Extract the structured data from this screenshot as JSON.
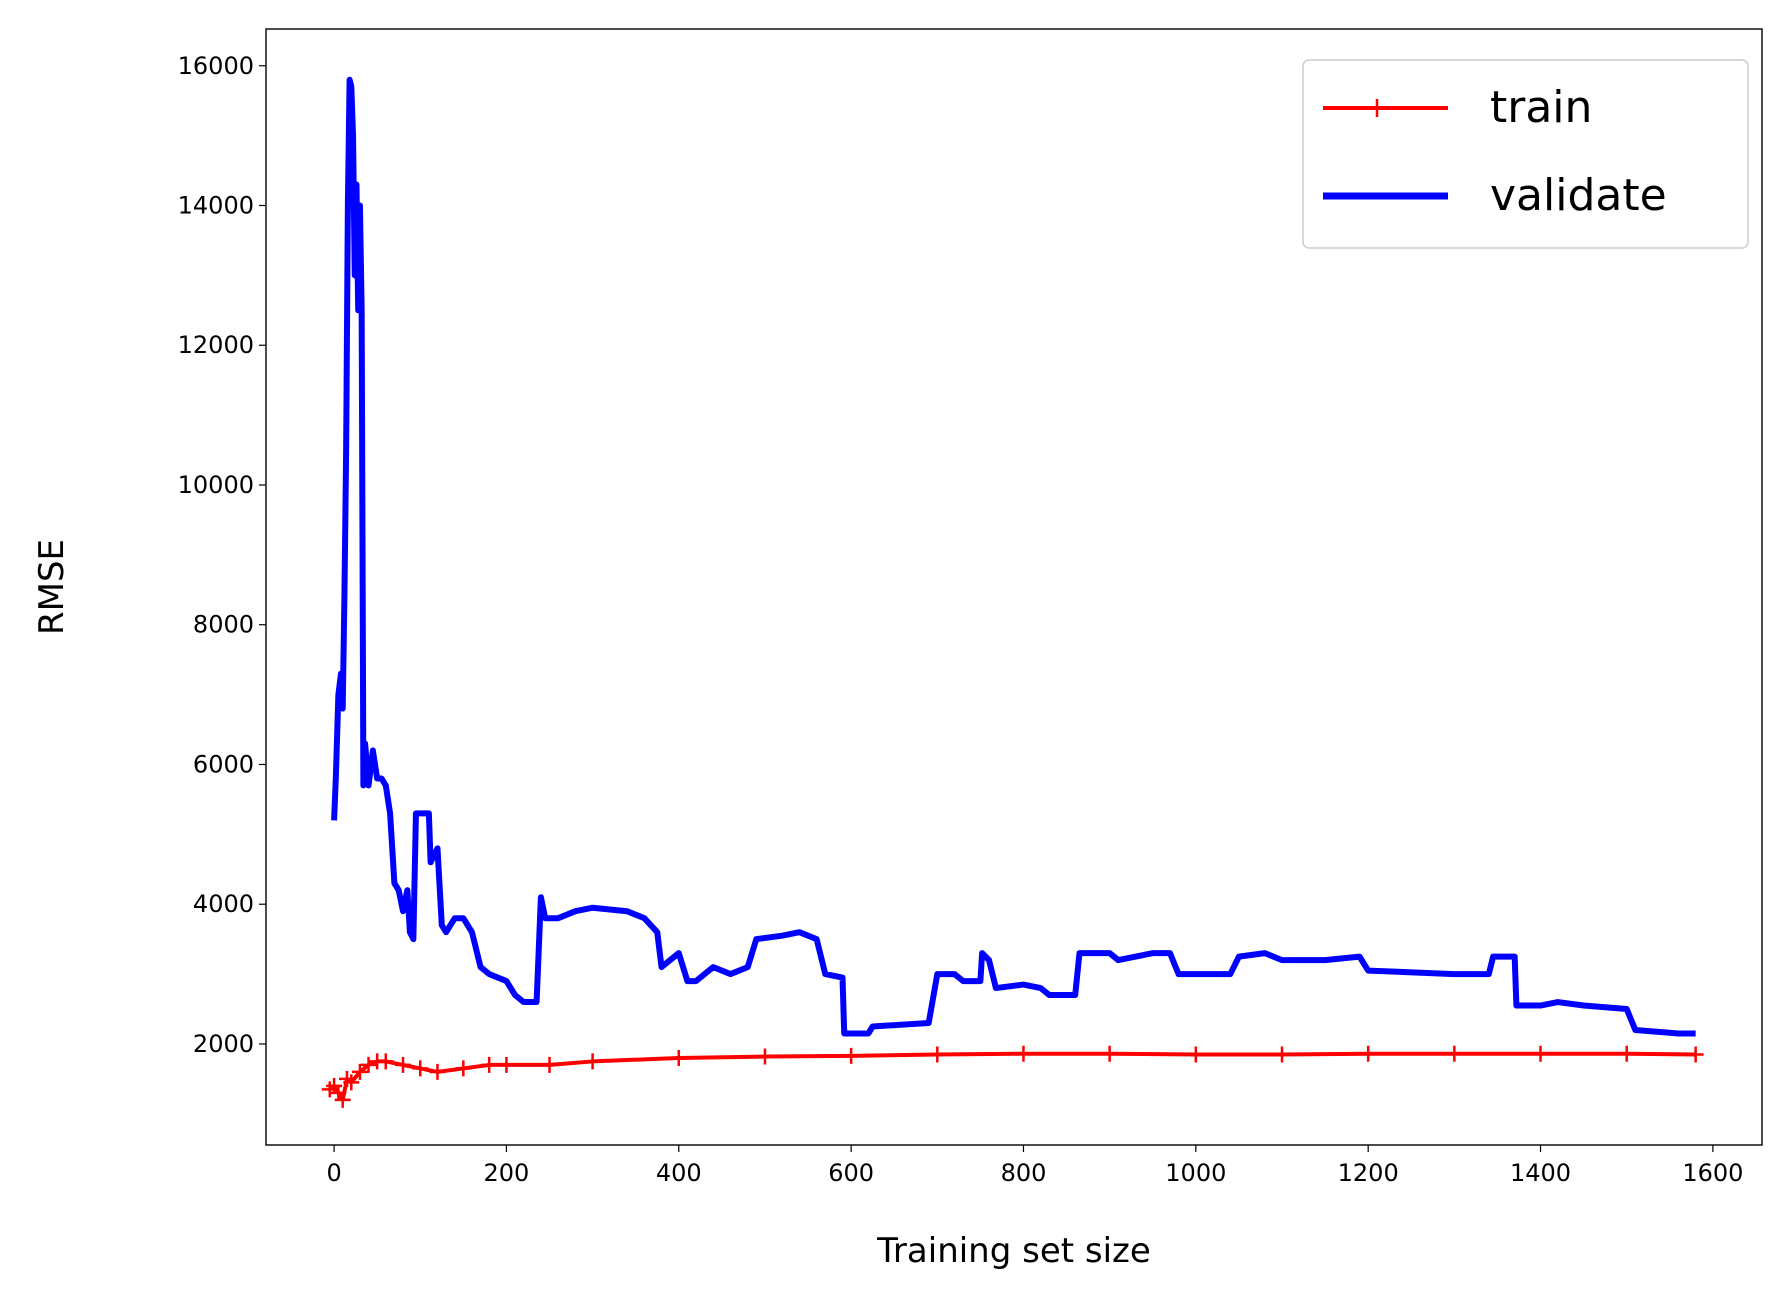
{
  "chart_data": {
    "type": "line",
    "x_label": "Training set size",
    "y_label": "RMSE",
    "xlim": [
      -79,
      1657
    ],
    "ylim": [
      554,
      16526
    ],
    "xticks": [
      0,
      200,
      400,
      600,
      800,
      1000,
      1200,
      1400,
      1600
    ],
    "yticks": [
      2000,
      4000,
      6000,
      8000,
      10000,
      12000,
      14000,
      16000
    ],
    "grid": false,
    "legend": "upper right",
    "series": [
      {
        "name": "train",
        "color": "#ff0000",
        "marker": "+",
        "x": [
          -5,
          0,
          5,
          10,
          15,
          20,
          30,
          40,
          50,
          60,
          80,
          100,
          120,
          150,
          180,
          200,
          250,
          300,
          400,
          500,
          600,
          700,
          800,
          900,
          1000,
          1100,
          1200,
          1300,
          1400,
          1500,
          1580
        ],
        "values": [
          1350,
          1400,
          1300,
          1200,
          1500,
          1450,
          1600,
          1700,
          1750,
          1750,
          1700,
          1650,
          1600,
          1650,
          1700,
          1700,
          1700,
          1750,
          1800,
          1820,
          1830,
          1850,
          1860,
          1860,
          1850,
          1850,
          1860,
          1860,
          1860,
          1860,
          1850
        ]
      },
      {
        "name": "validate",
        "color": "#0000ff",
        "x": [
          0,
          2,
          5,
          8,
          10,
          12,
          14,
          16,
          18,
          20,
          22,
          24,
          26,
          28,
          30,
          32,
          34,
          36,
          40,
          45,
          50,
          55,
          60,
          65,
          70,
          75,
          80,
          85,
          88,
          92,
          95,
          100,
          110,
          112,
          120,
          125,
          130,
          140,
          150,
          160,
          170,
          180,
          200,
          210,
          220,
          235,
          240,
          245,
          260,
          280,
          300,
          340,
          360,
          375,
          380,
          400,
          410,
          420,
          440,
          460,
          480,
          490,
          520,
          540,
          560,
          570,
          590,
          592,
          620,
          625,
          690,
          700,
          720,
          730,
          750,
          752,
          760,
          768,
          800,
          820,
          830,
          860,
          865,
          900,
          910,
          950,
          970,
          980,
          1000,
          1040,
          1050,
          1080,
          1100,
          1150,
          1190,
          1200,
          1300,
          1340,
          1345,
          1370,
          1372,
          1400,
          1420,
          1450,
          1500,
          1510,
          1560,
          1580
        ],
        "values": [
          5200,
          5800,
          7000,
          7300,
          6800,
          8400,
          10500,
          14000,
          15800,
          15700,
          15000,
          13000,
          14300,
          12500,
          14000,
          12500,
          5700,
          6300,
          5700,
          6200,
          5800,
          5800,
          5700,
          5300,
          4300,
          4200,
          3900,
          4200,
          3600,
          3500,
          5300,
          5300,
          5300,
          4600,
          4800,
          3700,
          3600,
          3800,
          3800,
          3600,
          3100,
          3000,
          2900,
          2700,
          2600,
          2600,
          4100,
          3800,
          3800,
          3900,
          3950,
          3900,
          3800,
          3600,
          3100,
          3300,
          2900,
          2900,
          3100,
          3000,
          3100,
          3500,
          3550,
          3600,
          3500,
          3000,
          2950,
          2150,
          2150,
          2250,
          2300,
          3000,
          3000,
          2900,
          2900,
          3300,
          3200,
          2800,
          2850,
          2800,
          2700,
          2700,
          3300,
          3300,
          3200,
          3300,
          3300,
          3000,
          3000,
          3000,
          3250,
          3300,
          3200,
          3200,
          3250,
          3050,
          3000,
          3000,
          3250,
          3250,
          2550,
          2550,
          2600,
          2550,
          2500,
          2200,
          2150,
          2150
        ]
      }
    ]
  }
}
